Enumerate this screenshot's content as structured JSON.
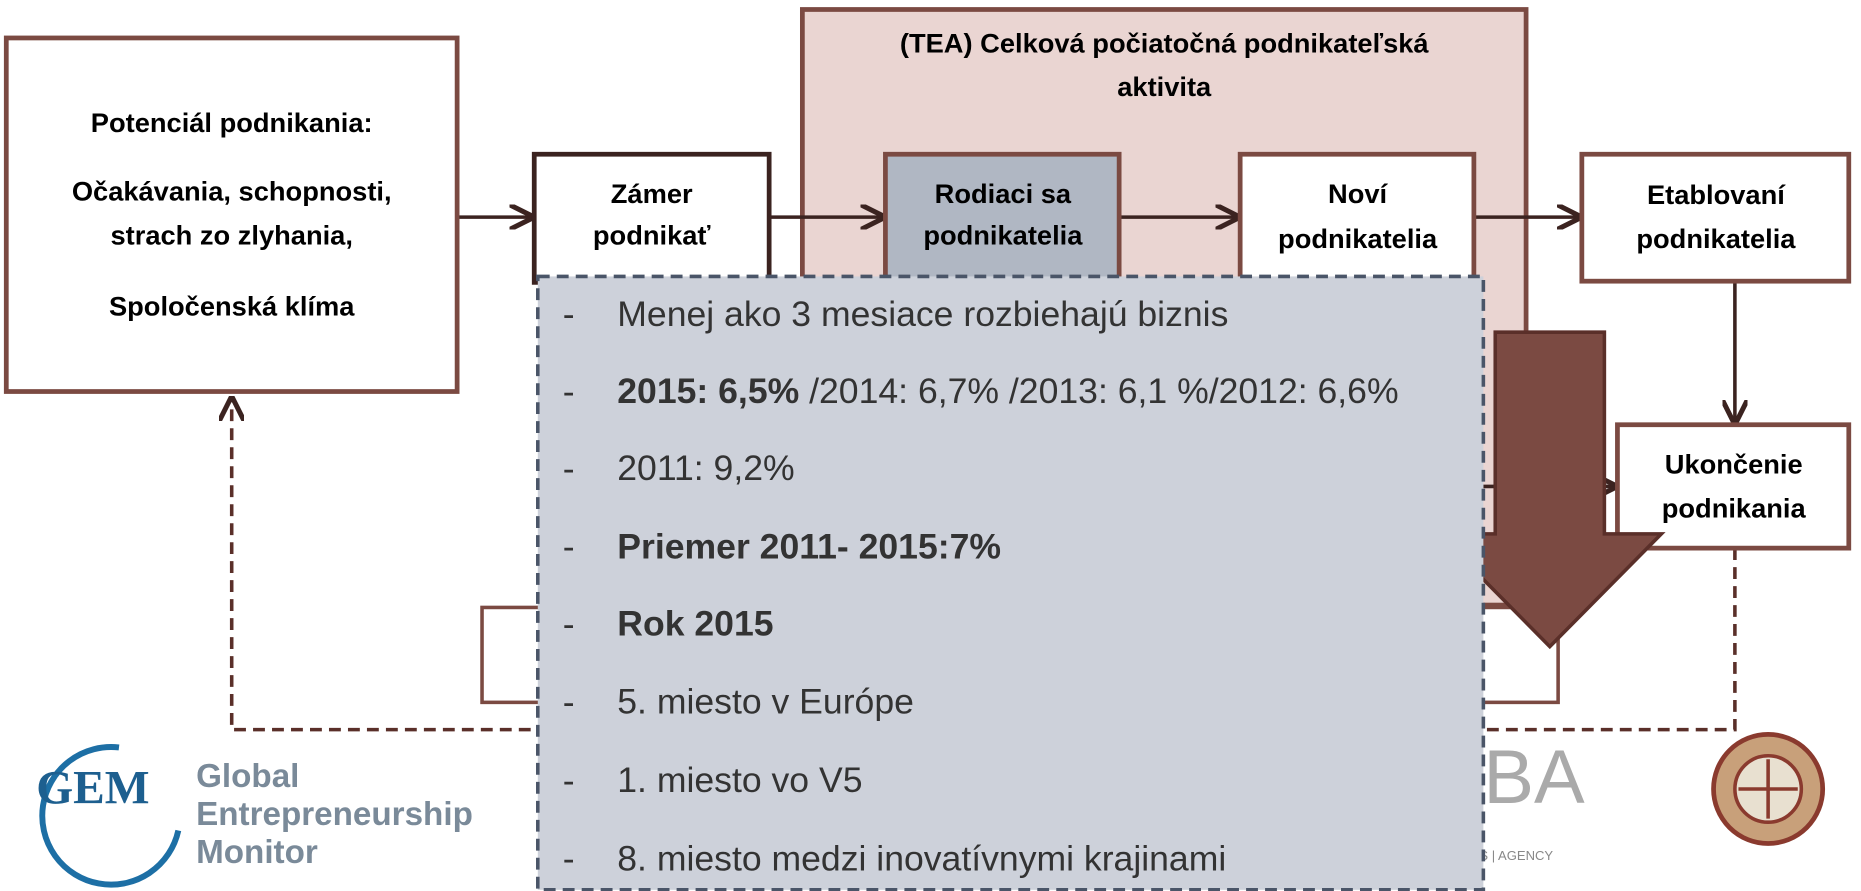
{
  "source_box": {
    "lines": [
      "Potenciál podnikania:",
      "Očakávania, schopnosti,",
      "strach zo zlyhania,",
      "Spoločenská klíma"
    ]
  },
  "intent_box": {
    "lines": [
      "Zámer",
      "podnikať"
    ]
  },
  "tea_box": {
    "lines": [
      "(TEA) Celková počiatočná podnikateľská",
      "aktivita"
    ]
  },
  "nascent_box": {
    "lines": [
      "Rodiaci sa",
      "podnikatelia"
    ]
  },
  "new_box": {
    "lines": [
      "Noví",
      "podnikatelia"
    ]
  },
  "established_box": {
    "lines": [
      "Etablovaní",
      "podnikatelia"
    ]
  },
  "exit_box": {
    "lines": [
      "Ukončenie",
      "podnikania"
    ]
  },
  "info_list": {
    "marker": "-",
    "items": [
      [
        {
          "text": "Menej ako 3 mesiace rozbiehajú biznis",
          "bold": false
        }
      ],
      [
        {
          "text": "2015: 6,5%",
          "bold": true
        },
        {
          "text": " /2014: 6,7% /2013: 6,1 %/2012: 6,6%",
          "bold": false
        }
      ],
      [
        {
          "text": "2011: 9,2%",
          "bold": false
        }
      ],
      [
        {
          "text": "Priemer 2011- 2015:7%",
          "bold": true
        }
      ],
      [
        {
          "text": "Rok 2015",
          "bold": true
        }
      ],
      [
        {
          "text": "5. miesto v Európe",
          "bold": false
        }
      ],
      [
        {
          "text": "1. miesto vo V5",
          "bold": false
        }
      ],
      [
        {
          "text": "8. miesto medzi inovatívnymi krajinami",
          "bold": false
        }
      ]
    ]
  },
  "logos": {
    "gem": "GEM",
    "gem_name": [
      "Global",
      "Entrepreneurship",
      "Monitor"
    ],
    "agency": "BA",
    "agency_sub": "ESS | AGENCY"
  }
}
